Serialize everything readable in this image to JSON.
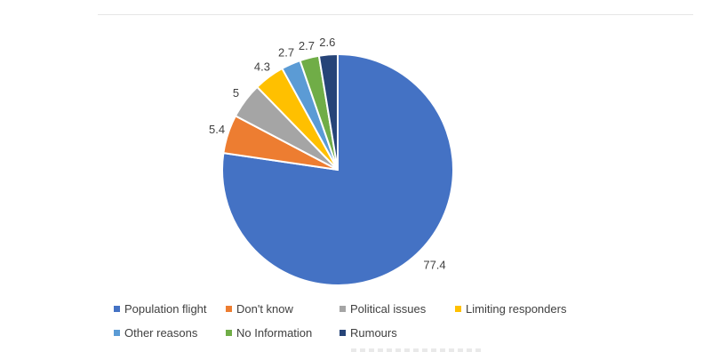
{
  "chart_data": {
    "type": "pie",
    "title": "",
    "labels": [
      "Population flight",
      "Don't know",
      "Political issues",
      "Limiting responders",
      "Other reasons",
      "No Information",
      "Rumours"
    ],
    "values": [
      77.4,
      5.4,
      5,
      4.3,
      2.7,
      2.7,
      2.6
    ],
    "data_labels": [
      "77.4",
      "5.4",
      "5",
      "4.3",
      "2.7",
      "2.7",
      "2.6"
    ],
    "colors": [
      "#4472c4",
      "#ed7d31",
      "#a5a5a5",
      "#ffc000",
      "#5b9bd5",
      "#70ad47",
      "#264478"
    ],
    "start_angle": "12 o'clock",
    "direction": "clockwise",
    "legend_position": "bottom"
  }
}
